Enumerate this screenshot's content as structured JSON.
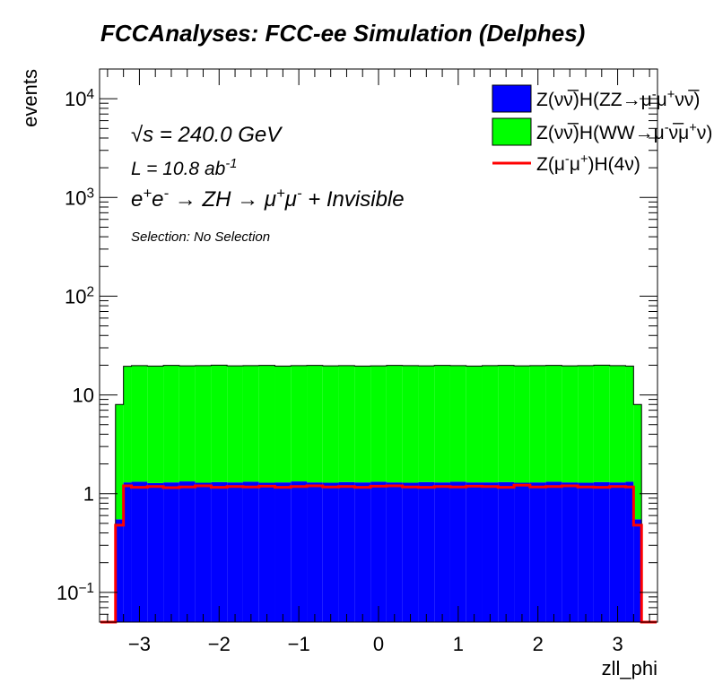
{
  "chart_data": {
    "type": "area",
    "title": "FCCAnalyses: FCC-ee Simulation (Delphes)",
    "xlabel": "zll_phi",
    "ylabel": "events",
    "xlim": [
      -3.5,
      3.5
    ],
    "ylim": [
      0.05,
      20000
    ],
    "yscale": "log",
    "x_ticks": [
      -3,
      -2,
      -1,
      0,
      1,
      2,
      3
    ],
    "x_tick_labels": [
      "−3",
      "−2",
      "−1",
      "0",
      "1",
      "2",
      "3"
    ],
    "y_ticks": [
      0.1,
      1,
      10,
      100,
      1000,
      10000
    ],
    "y_tick_labels": [
      "10^-1",
      "1",
      "10",
      "10^2",
      "10^3",
      "10^4"
    ],
    "grid": false,
    "legend_position": "top-right",
    "annotations": {
      "energy": "√s = 240.0 GeV",
      "lumi": "L = 10.8 ab^-1",
      "process": "e+e- → ZH → μ+μ- + Invisible",
      "selection": "Selection: No Selection"
    },
    "bin_edges": [
      -3.3,
      -3.2,
      -3.1,
      -2.9,
      -2.7,
      -2.5,
      -2.3,
      -2.1,
      -1.9,
      -1.7,
      -1.5,
      -1.3,
      -1.1,
      -0.9,
      -0.7,
      -0.5,
      -0.3,
      -0.1,
      0.1,
      0.3,
      0.5,
      0.7,
      0.9,
      1.1,
      1.3,
      1.5,
      1.7,
      1.9,
      2.1,
      2.3,
      2.5,
      2.7,
      2.9,
      3.1,
      3.2,
      3.3
    ],
    "series": [
      {
        "name": "Z(νν̅)H(ZZ→μ-μ+νν̅)",
        "style": "stacked",
        "color": "#0000ff",
        "values": [
          0.55,
          1.3,
          1.32,
          1.28,
          1.3,
          1.33,
          1.29,
          1.31,
          1.3,
          1.32,
          1.29,
          1.3,
          1.33,
          1.3,
          1.29,
          1.31,
          1.3,
          1.32,
          1.3,
          1.29,
          1.31,
          1.3,
          1.32,
          1.3,
          1.3,
          1.31,
          1.29,
          1.3,
          1.32,
          1.3,
          1.29,
          1.31,
          1.3,
          1.32,
          0.55
        ]
      },
      {
        "name": "Z(νν̅)H(WW→μ-ν̅μ+ν)",
        "style": "stacked",
        "color": "#00ff00",
        "values": [
          7.45,
          18.2,
          18.5,
          18.3,
          18.6,
          18.4,
          18.5,
          18.7,
          18.4,
          18.5,
          18.6,
          18.3,
          18.5,
          18.6,
          18.4,
          18.5,
          18.3,
          18.4,
          18.6,
          18.5,
          18.4,
          18.6,
          18.5,
          18.3,
          18.5,
          18.6,
          18.4,
          18.5,
          18.6,
          18.4,
          18.5,
          18.7,
          18.5,
          18.3,
          7.45
        ]
      },
      {
        "name": "Z(μ-μ+)H(4ν)",
        "style": "line",
        "color": "#ff0000",
        "values": [
          0.48,
          1.2,
          1.16,
          1.18,
          1.15,
          1.17,
          1.2,
          1.16,
          1.18,
          1.17,
          1.19,
          1.16,
          1.18,
          1.2,
          1.17,
          1.18,
          1.16,
          1.19,
          1.2,
          1.17,
          1.16,
          1.18,
          1.17,
          1.19,
          1.18,
          1.16,
          1.22,
          1.17,
          1.18,
          1.2,
          1.17,
          1.16,
          1.18,
          1.17,
          0.48
        ]
      }
    ]
  }
}
